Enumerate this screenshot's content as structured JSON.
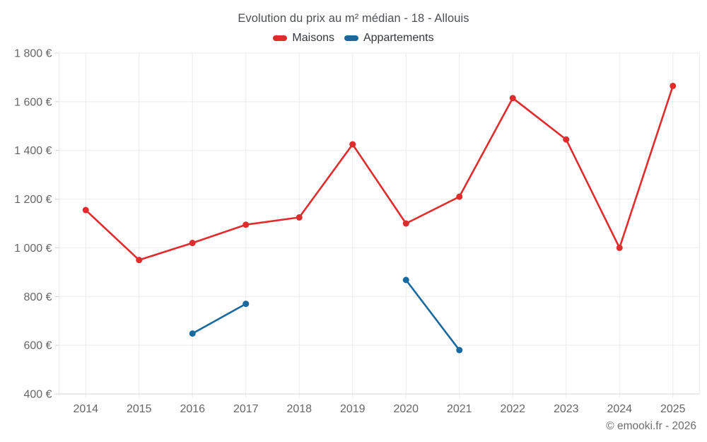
{
  "footer": {
    "attribution": "© emooki.fr - 2026"
  },
  "theme": {
    "background": "#ffffff",
    "grid_color": "#ebebeb",
    "axis_line_color": "#d5d5d5",
    "tick_color": "#d5d5d5",
    "axis_label_color": "#666666",
    "title_color": "#4c4f54",
    "legend_text_color": "#33373c",
    "footer_color": "#6d6d6d"
  },
  "chart_data": {
    "type": "line",
    "title": "Evolution du prix au m² médian - 18 - Allouis",
    "categories": [
      "2014",
      "2015",
      "2016",
      "2017",
      "2018",
      "2019",
      "2020",
      "2021",
      "2022",
      "2023",
      "2024",
      "2025"
    ],
    "series": [
      {
        "name": "Maisons",
        "color": "#e02c2c",
        "values": [
          1155,
          950,
          1020,
          1095,
          1125,
          1425,
          1100,
          1210,
          1615,
          1445,
          1000,
          1665
        ]
      },
      {
        "name": "Appartements",
        "color": "#17699f",
        "values": [
          null,
          null,
          648,
          770,
          null,
          null,
          868,
          580,
          null,
          null,
          null,
          null
        ]
      }
    ],
    "xlabel": "",
    "ylabel": "",
    "ylim": [
      400,
      1800
    ],
    "ytick_step": 200,
    "yticks": [
      {
        "v": 400,
        "label": "400 €"
      },
      {
        "v": 600,
        "label": "600 €"
      },
      {
        "v": 800,
        "label": "800 €"
      },
      {
        "v": 1000,
        "label": "1 000 €"
      },
      {
        "v": 1200,
        "label": "1 200 €"
      },
      {
        "v": 1400,
        "label": "1 400 €"
      },
      {
        "v": 1600,
        "label": "1 600 €"
      },
      {
        "v": 1800,
        "label": "1 800 €"
      }
    ],
    "grid": true,
    "legend_position": "top",
    "marker_radius": 4.5,
    "line_width": 2.6
  }
}
